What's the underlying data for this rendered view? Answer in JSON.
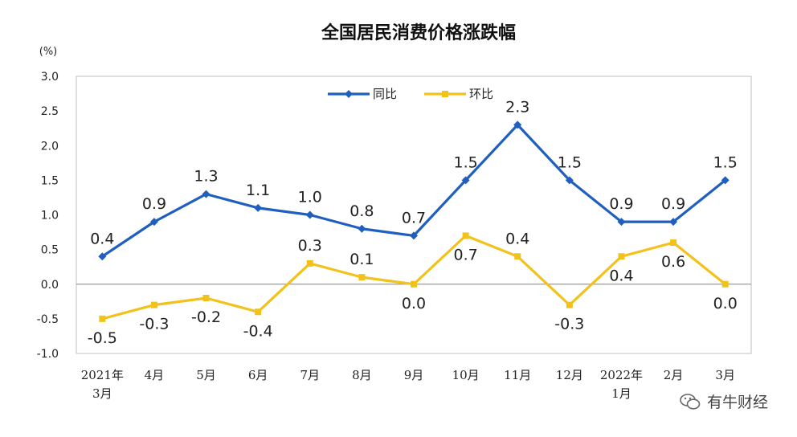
{
  "chart_data": {
    "type": "line",
    "title": "全国居民消费价格涨跌幅",
    "unit": "(%)",
    "ylim": [
      -1.0,
      3.0
    ],
    "y_ticks": [
      "3.0",
      "2.5",
      "2.0",
      "1.5",
      "1.0",
      "0.5",
      "0.0",
      "-0.5",
      "-1.0"
    ],
    "y_tick_values": [
      3.0,
      2.5,
      2.0,
      1.5,
      1.0,
      0.5,
      0.0,
      -0.5,
      -1.0
    ],
    "categories": [
      [
        "2021年",
        "3月"
      ],
      [
        "4月"
      ],
      [
        "5月"
      ],
      [
        "6月"
      ],
      [
        "7月"
      ],
      [
        "8月"
      ],
      [
        "9月"
      ],
      [
        "10月"
      ],
      [
        "11月"
      ],
      [
        "12月"
      ],
      [
        "2022年",
        "1月"
      ],
      [
        "2月"
      ],
      [
        "3月"
      ]
    ],
    "series": [
      {
        "name": "同比",
        "color": "#1f5fbf",
        "marker": "diamond",
        "values": [
          0.4,
          0.9,
          1.3,
          1.1,
          1.0,
          0.8,
          0.7,
          1.5,
          2.3,
          1.5,
          0.9,
          0.9,
          1.5
        ],
        "labels": [
          "0.4",
          "0.9",
          "1.3",
          "1.1",
          "1.0",
          "0.8",
          "0.7",
          "1.5",
          "2.3",
          "1.5",
          "0.9",
          "0.9",
          "1.5"
        ]
      },
      {
        "name": "环比",
        "color": "#f2c21a",
        "marker": "square",
        "values": [
          -0.5,
          -0.3,
          -0.2,
          -0.4,
          0.3,
          0.1,
          0.0,
          0.7,
          0.4,
          -0.3,
          0.4,
          0.6,
          0.0
        ],
        "labels": [
          "-0.5",
          "-0.3",
          "-0.2",
          "-0.4",
          "0.3",
          "0.1",
          "0.0",
          "0.7",
          "0.4",
          "-0.3",
          "0.4",
          "0.6",
          "0.0"
        ]
      }
    ],
    "legend_position": "top-center",
    "grid": false
  },
  "watermark": {
    "text": "有牛财经",
    "icon": "wechat-icon"
  }
}
